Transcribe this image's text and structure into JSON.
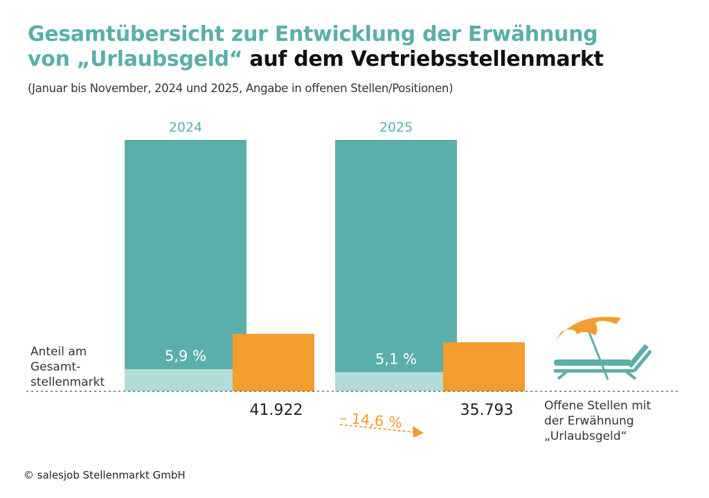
{
  "title": {
    "line1": "Gesamtübersicht zur Entwicklung der Erwähnung",
    "line2_colored": "von „Urlaubsgeld“",
    "line2_black": " auf dem Vertriebsstellenmarkt"
  },
  "subtitle": "(Januar bis November, 2024 und 2025, Angabe in offenen Stellen/Positionen)",
  "axis_label": [
    "Anteil am",
    "Gesamt-",
    "stellenmarkt"
  ],
  "legend_text": [
    "Offene Stellen mit",
    "der Erwähnung",
    "„Urlaubsgeld“"
  ],
  "source": "© salesjob Stellenmarkt GmbH",
  "colors": {
    "teal": "#5aafaa",
    "teal_light": "#b3dcd9",
    "orange": "#f39c2f",
    "text": "#333333"
  },
  "icon": "beach-lounger-umbrella-icon",
  "chart_data": {
    "type": "bar",
    "title": "Gesamtübersicht zur Entwicklung der Erwähnung von „Urlaubsgeld“ auf dem Vertriebsstellenmarkt",
    "subtitle": "(Januar bis November, 2024 und 2025, Angabe in offenen Stellen/Positionen)",
    "categories": [
      "2024",
      "2025"
    ],
    "series": [
      {
        "name": "Anteil am Gesamtstellenmarkt",
        "values": [
          5.9,
          5.1
        ],
        "labels": [
          "5,9 %",
          "5,1 %"
        ],
        "unit": "%"
      },
      {
        "name": "Offene Stellen mit der Erwähnung „Urlaubsgeld“",
        "values": [
          41922,
          35793
        ],
        "labels": [
          "41.922",
          "35.793"
        ]
      }
    ],
    "change": {
      "value": -14.6,
      "label": "– 14,6 %"
    },
    "xlabel": "",
    "ylabel": "",
    "grid": false,
    "legend": "right"
  }
}
